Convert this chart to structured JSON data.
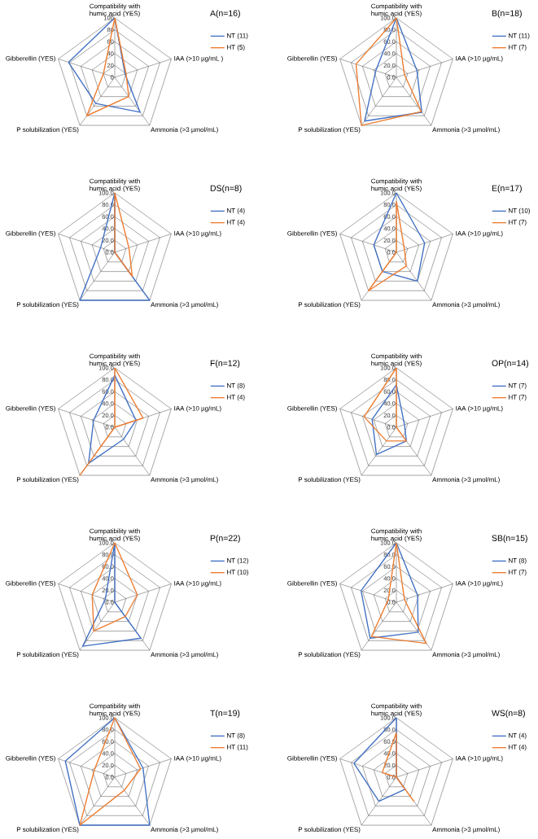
{
  "chart_data": [
    {
      "type": "radar",
      "title": "A(n=16)",
      "categories": [
        "Compatibility with humic acid (YES)",
        "IAA (>10 µg/mL )",
        "Ammonia (>3 µmol/mL)",
        "P solubilization (YES)",
        "Gibberellin (YES)"
      ],
      "series": [
        {
          "name": "NT (11)",
          "color": "#4472c4",
          "values": [
            100,
            18.2,
            72.7,
            54.5,
            81.8
          ]
        },
        {
          "name": "HT (5)",
          "color": "#ed7d31",
          "values": [
            100,
            20,
            40,
            80,
            20
          ]
        }
      ],
      "ylim": [
        0,
        100
      ],
      "yticks": [
        0,
        20,
        40,
        60,
        80,
        100
      ],
      "grid": true,
      "legend": "top right"
    },
    {
      "type": "radar",
      "title": "B(n=18)",
      "categories": [
        "Compatibility with humic acid (YES)",
        "IAA (>10 µg/mL)",
        "Ammonia (>3 µmol/mL)",
        "P solubilization (YES)",
        "Gibberellin (YES)"
      ],
      "series": [
        {
          "name": "NT (11)",
          "color": "#4472c4",
          "values": [
            100,
            36.4,
            72.7,
            90.9,
            36.4
          ]
        },
        {
          "name": "HT (7)",
          "color": "#ed7d31",
          "values": [
            100,
            14.3,
            71.4,
            100,
            71.4
          ]
        }
      ],
      "ylim": [
        0,
        100
      ],
      "yticks": [
        {
          "value": 0,
          "label": "0.0"
        },
        {
          "value": 20,
          "label": "20.0"
        },
        {
          "value": 40,
          "label": "40.0"
        },
        {
          "value": 60,
          "label": "60.0"
        },
        {
          "value": 80,
          "label": "80.0"
        },
        {
          "value": 100,
          "label": "100.0"
        }
      ],
      "grid": true,
      "legend": "top right"
    },
    {
      "type": "radar",
      "title": "DS(n=8)",
      "categories": [
        "Compatibility with humic acid (YES)",
        "IAA (>10 µg/mL)",
        "Ammonia (>3 µmol/mL)",
        "P solubilization (YES)",
        "Gibberellin (YES)"
      ],
      "series": [
        {
          "name": "NT (4)",
          "color": "#4472c4",
          "values": [
            100,
            0,
            100,
            100,
            25
          ]
        },
        {
          "name": "HT (4)",
          "color": "#ed7d31",
          "values": [
            100,
            25,
            50,
            0,
            0
          ]
        }
      ],
      "ylim": [
        0,
        100
      ],
      "yticks": [
        {
          "value": 0,
          "label": "0.0"
        },
        {
          "value": 20,
          "label": "20.0"
        },
        {
          "value": 40,
          "label": "40.0"
        },
        {
          "value": 60,
          "label": "60.0"
        },
        {
          "value": 80,
          "label": "80.0"
        },
        {
          "value": 100,
          "label": "100.0"
        }
      ],
      "grid": true,
      "legend": "top right"
    },
    {
      "type": "radar",
      "title": "E(n=17)",
      "categories": [
        "Compatibility with humic acid (YES)",
        "IAA (>10 µg/mL)",
        "Ammonia (>3 µmol/mL)",
        "P solubilization (YES)",
        "Gibberellin (YES)"
      ],
      "series": [
        {
          "name": "NT (10)",
          "color": "#4472c4",
          "values": [
            100,
            50,
            60,
            40,
            40
          ]
        },
        {
          "name": "HT (7)",
          "color": "#ed7d31",
          "values": [
            85.7,
            14.3,
            28.6,
            80,
            0
          ]
        }
      ],
      "ylim": [
        0,
        100
      ],
      "yticks": [
        {
          "value": 0,
          "label": "0.0"
        },
        {
          "value": 20,
          "label": "20.0"
        },
        {
          "value": 40,
          "label": "40.0"
        },
        {
          "value": 60,
          "label": "60.0"
        },
        {
          "value": 80,
          "label": "80.0"
        },
        {
          "value": 100,
          "label": "100.0"
        }
      ],
      "grid": true,
      "legend": "top right"
    },
    {
      "type": "radar",
      "title": "F(n=12)",
      "categories": [
        "Compatibility with humic acid (YES)",
        "IAA (>10 µg/mL)",
        "Ammonia (>3 µmol/mL)",
        "P solubilization (YES)",
        "Gibberellin (YES)"
      ],
      "series": [
        {
          "name": "NT (8)",
          "color": "#4472c4",
          "values": [
            87.5,
            37.5,
            25,
            75,
            37.5
          ]
        },
        {
          "name": "HT  (4)",
          "color": "#ed7d31",
          "values": [
            100,
            50,
            0,
            100,
            0
          ]
        }
      ],
      "ylim": [
        0,
        100
      ],
      "yticks": [
        {
          "value": 0,
          "label": "0.0"
        },
        {
          "value": 20,
          "label": "20.0"
        },
        {
          "value": 40,
          "label": "40.0"
        },
        {
          "value": 60,
          "label": "60.0"
        },
        {
          "value": 80,
          "label": "80.0"
        },
        {
          "value": 100,
          "label": "100.0"
        }
      ],
      "grid": true,
      "legend": "top right"
    },
    {
      "type": "radar",
      "title": "OP(n=14)",
      "categories": [
        "Compatibility with humic acid (YES)",
        "IAA (>10 µg/mL)",
        "Ammonia (>3 µmol/mL)",
        "P solubilization (YES)",
        "Gibberellin (YES)"
      ],
      "series": [
        {
          "name": "NT (7)",
          "color": "#4472c4",
          "values": [
            71.4,
            14.3,
            28.6,
            57.1,
            42.9
          ]
        },
        {
          "name": "HT (7)",
          "color": "#ed7d31",
          "values": [
            100,
            0,
            28.6,
            28.6,
            57.1
          ]
        }
      ],
      "ylim": [
        0,
        100
      ],
      "yticks": [
        {
          "value": 0,
          "label": "0.0"
        },
        {
          "value": 20,
          "label": "20.0"
        },
        {
          "value": 40,
          "label": "40.0"
        },
        {
          "value": 60,
          "label": "60.0"
        },
        {
          "value": 80,
          "label": "80.0"
        },
        {
          "value": 100,
          "label": "100.0"
        }
      ],
      "grid": true,
      "legend": "top right"
    },
    {
      "type": "radar",
      "title": "P(n=22)",
      "categories": [
        "Compatibility with humic acid (YES)",
        "IAA (>10 µg/mL)",
        "Ammonia (>3 µmol/mL)",
        "P solubilization (YES)",
        "Gibberellin (YES)"
      ],
      "series": [
        {
          "name": "NT (12)",
          "color": "#4472c4",
          "values": [
            100,
            0,
            75,
            91.7,
            16.7
          ]
        },
        {
          "name": "HT (10)",
          "color": "#ed7d31",
          "values": [
            100,
            40,
            30,
            60,
            40
          ]
        }
      ],
      "ylim": [
        0,
        100
      ],
      "yticks": [
        {
          "value": 0,
          "label": "0.0"
        },
        {
          "value": 20,
          "label": "20.0"
        },
        {
          "value": 40,
          "label": "40.0"
        },
        {
          "value": 60,
          "label": "60.0"
        },
        {
          "value": 80,
          "label": "80.0"
        },
        {
          "value": 100,
          "label": "100.0"
        }
      ],
      "grid": true,
      "legend": "top right"
    },
    {
      "type": "radar",
      "title": "SB(n=15)",
      "categories": [
        "Compatibility with humic acid (YES)",
        "IAA (>10 µg/mL)",
        "Ammonia (>3 µmol/mL)",
        "P solubilization (YES)",
        "Gibberellin (YES)"
      ],
      "series": [
        {
          "name": "NT (8)",
          "color": "#4472c4",
          "values": [
            100,
            37.5,
            62.5,
            75,
            62.5
          ]
        },
        {
          "name": "HT (7)",
          "color": "#ed7d31",
          "values": [
            100,
            14.3,
            85.7,
            71.4,
            14.3
          ]
        }
      ],
      "ylim": [
        0,
        100
      ],
      "yticks": [
        {
          "value": 0,
          "label": "0.0"
        },
        {
          "value": 20,
          "label": "20.0"
        },
        {
          "value": 40,
          "label": "40.0"
        },
        {
          "value": 60,
          "label": "60.0"
        },
        {
          "value": 80,
          "label": "80.0"
        },
        {
          "value": 100,
          "label": "100.0"
        }
      ],
      "grid": true,
      "legend": "top right"
    },
    {
      "type": "radar",
      "title": "T(n=19)",
      "categories": [
        "Compatibility with humic acid (YES)",
        "IAA (>10 µg/mL)",
        "Ammonia (>3 µmol/mL)",
        "P solubilization (YES)",
        "Gibberellin (YES)"
      ],
      "series": [
        {
          "name": "NT (8)",
          "color": "#4472c4",
          "values": [
            100,
            50,
            100,
            100,
            87.5
          ]
        },
        {
          "name": "HT (11)",
          "color": "#ed7d31",
          "values": [
            100,
            45.5,
            27.3,
            100,
            36.4
          ]
        }
      ],
      "ylim": [
        0,
        100
      ],
      "yticks": [
        {
          "value": 0,
          "label": "0.0"
        },
        {
          "value": 20,
          "label": "20.0"
        },
        {
          "value": 40,
          "label": "40.0"
        },
        {
          "value": 60,
          "label": "60.0"
        },
        {
          "value": 80,
          "label": "80.0"
        },
        {
          "value": 100,
          "label": "100.0"
        }
      ],
      "grid": true,
      "legend": "top right"
    },
    {
      "type": "radar",
      "title": "WS(n=8)",
      "categories": [
        "Compatibility with humic acid (YES)",
        "IAA (>10 µg/mL)",
        "Ammonia (>3 µmol/mL)",
        "P solubilization (YES)",
        "Gibberellin (YES)"
      ],
      "series": [
        {
          "name": "NT (4)",
          "color": "#4472c4",
          "values": [
            100,
            0,
            25,
            50,
            75
          ]
        },
        {
          "name": "HT (4)",
          "color": "#ed7d31",
          "values": [
            75,
            0,
            50,
            0,
            25
          ]
        }
      ],
      "ylim": [
        0,
        100
      ],
      "yticks": [
        {
          "value": 0,
          "label": "0.0"
        },
        {
          "value": 20,
          "label": "20.0"
        },
        {
          "value": 40,
          "label": "40.0"
        },
        {
          "value": 60,
          "label": "60.0"
        },
        {
          "value": 80,
          "label": "80.0"
        },
        {
          "value": 100,
          "label": "100.0"
        }
      ],
      "grid": true,
      "legend": "top right"
    }
  ]
}
